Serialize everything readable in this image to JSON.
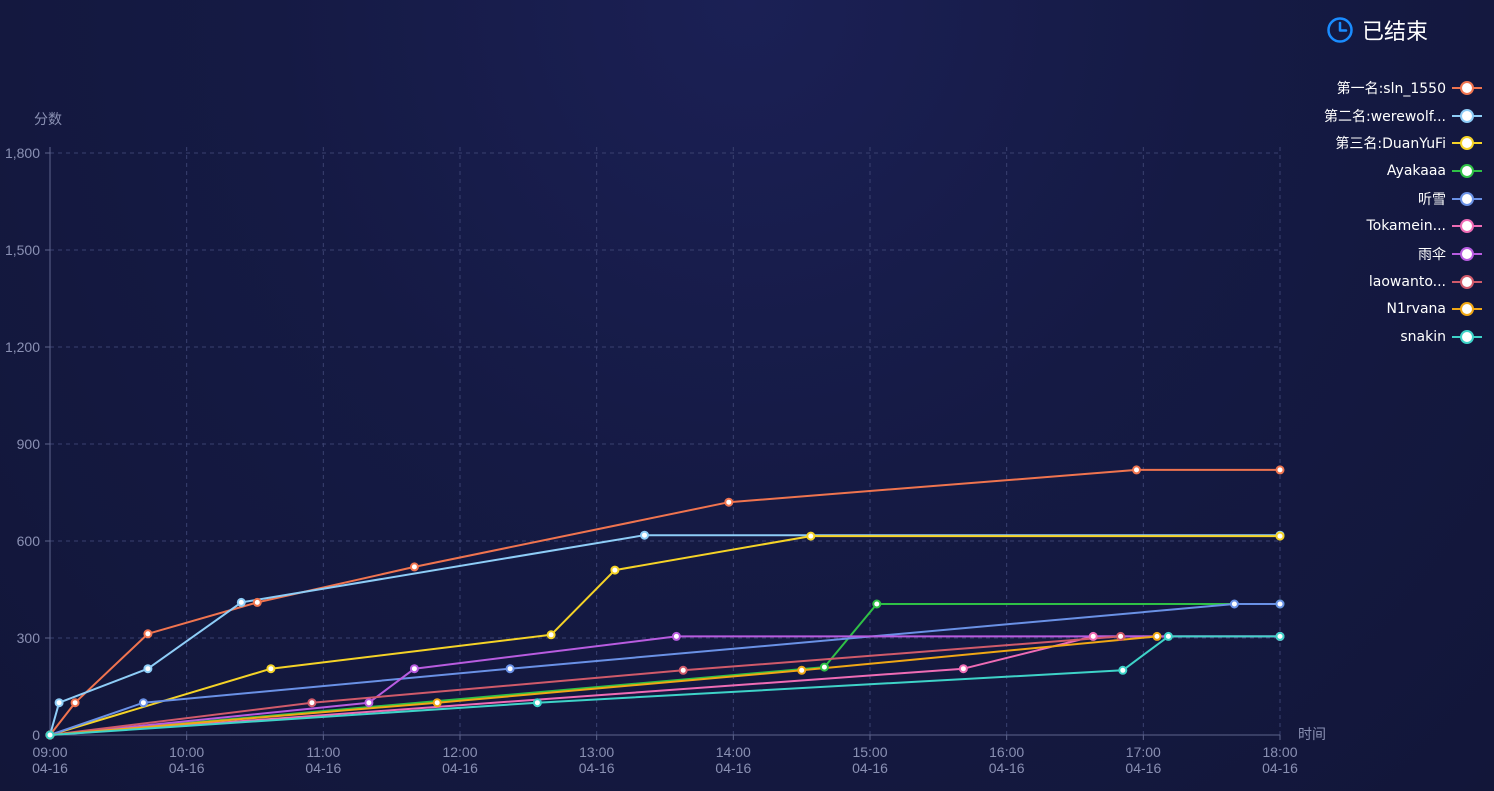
{
  "status": {
    "label": "已结束",
    "icon": "clock-icon",
    "color": "#1a8cff"
  },
  "chart_data": {
    "type": "line",
    "ylabel": "分数",
    "xlabel": "时间",
    "ylim": [
      0,
      1800
    ],
    "yticks": [
      0,
      300,
      600,
      900,
      1200,
      1500,
      1800
    ],
    "ytick_labels": [
      "0",
      "300",
      "600",
      "900",
      "1,200",
      "1,500",
      "1,800"
    ],
    "xlim": [
      "09:00",
      "18:00"
    ],
    "xticks": [
      {
        "time": "09:00",
        "label": "09:00",
        "date": "04-16"
      },
      {
        "time": "10:00",
        "label": "10:00",
        "date": "04-16"
      },
      {
        "time": "11:00",
        "label": "11:00",
        "date": "04-16"
      },
      {
        "time": "12:00",
        "label": "12:00",
        "date": "04-16"
      },
      {
        "time": "13:00",
        "label": "13:00",
        "date": "04-16"
      },
      {
        "time": "14:00",
        "label": "14:00",
        "date": "04-16"
      },
      {
        "time": "15:00",
        "label": "15:00",
        "date": "04-16"
      },
      {
        "time": "16:00",
        "label": "16:00",
        "date": "04-16"
      },
      {
        "time": "17:00",
        "label": "17:00",
        "date": "04-16"
      },
      {
        "time": "18:00",
        "label": "18:00",
        "date": "04-16"
      }
    ],
    "grid": true,
    "legend_position": "right",
    "series": [
      {
        "name": "第一名:sln_1550",
        "color": "#f0744f",
        "points": [
          [
            "09:00",
            0
          ],
          [
            "09:11",
            100
          ],
          [
            "09:43",
            313
          ],
          [
            "10:31",
            410
          ],
          [
            "11:40",
            520
          ],
          [
            "13:58",
            720
          ],
          [
            "16:57",
            820
          ],
          [
            "18:00",
            820
          ]
        ]
      },
      {
        "name": "第二名:werewolf...",
        "color": "#8ecdf7",
        "points": [
          [
            "09:00",
            0
          ],
          [
            "09:04",
            100
          ],
          [
            "09:43",
            205
          ],
          [
            "10:24",
            410
          ],
          [
            "13:21",
            618
          ],
          [
            "18:00",
            618
          ]
        ]
      },
      {
        "name": "第三名:DuanYuFi",
        "color": "#f5d327",
        "points": [
          [
            "09:00",
            0
          ],
          [
            "10:37",
            205
          ],
          [
            "12:40",
            310
          ],
          [
            "13:08",
            510
          ],
          [
            "14:34",
            615
          ],
          [
            "18:00",
            615
          ]
        ]
      },
      {
        "name": "Ayakaaa",
        "color": "#2fc146",
        "points": [
          [
            "09:00",
            0
          ],
          [
            "14:40",
            210
          ],
          [
            "15:03",
            405
          ],
          [
            "18:00",
            405
          ]
        ]
      },
      {
        "name": "听雪",
        "color": "#6a91e6",
        "points": [
          [
            "09:00",
            0
          ],
          [
            "09:41",
            100
          ],
          [
            "12:22",
            205
          ],
          [
            "17:40",
            405
          ],
          [
            "18:00",
            405
          ]
        ]
      },
      {
        "name": "Tokamein...",
        "color": "#ef6cb5",
        "points": [
          [
            "09:00",
            0
          ],
          [
            "15:41",
            205
          ],
          [
            "16:38",
            305
          ],
          [
            "18:00",
            305
          ]
        ]
      },
      {
        "name": "雨伞",
        "color": "#b85ce0",
        "points": [
          [
            "09:00",
            0
          ],
          [
            "11:20",
            100
          ],
          [
            "11:40",
            205
          ],
          [
            "13:35",
            305
          ],
          [
            "18:00",
            305
          ]
        ]
      },
      {
        "name": "laowanto...",
        "color": "#d05a6a",
        "points": [
          [
            "09:00",
            0
          ],
          [
            "10:55",
            100
          ],
          [
            "13:38",
            200
          ],
          [
            "16:50",
            305
          ]
        ]
      },
      {
        "name": "N1rvana",
        "color": "#f0a715",
        "points": [
          [
            "09:00",
            0
          ],
          [
            "11:50",
            100
          ],
          [
            "14:30",
            200
          ],
          [
            "17:06",
            305
          ]
        ]
      },
      {
        "name": "snakin",
        "color": "#3ed3c8",
        "points": [
          [
            "09:00",
            0
          ],
          [
            "12:34",
            100
          ],
          [
            "16:51",
            200
          ],
          [
            "17:11",
            305
          ],
          [
            "18:00",
            305
          ]
        ]
      }
    ]
  }
}
